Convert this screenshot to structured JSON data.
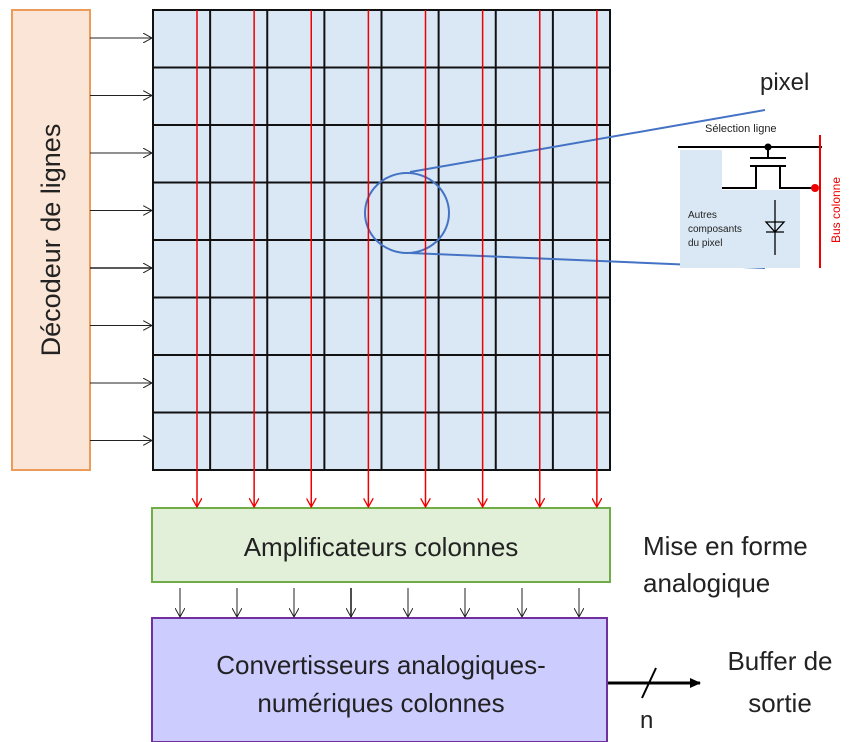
{
  "decoder": {
    "label": "Décodeur de lignes"
  },
  "amplifier": {
    "label": "Amplificateurs colonnes"
  },
  "converter": {
    "lines": [
      "Convertisseurs analogiques-",
      "numériques colonnes"
    ]
  },
  "analog_note": {
    "lines": [
      "Mise en forme",
      "analogique"
    ]
  },
  "output": {
    "bus_width": "n",
    "lines": [
      "Buffer de",
      "sortie"
    ]
  },
  "pixel_detail": {
    "title": "pixel",
    "row_select": "Sélection ligne",
    "column_bus": "Bus colonne",
    "other": [
      "Autres",
      "composants",
      "du pixel"
    ]
  }
}
